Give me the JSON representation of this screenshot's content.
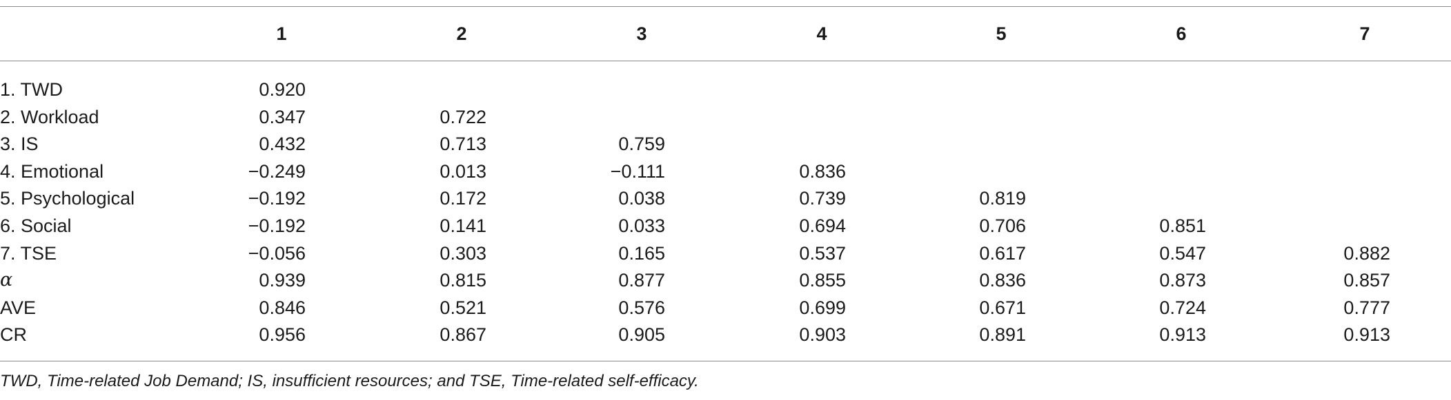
{
  "table": {
    "columns": [
      "1",
      "2",
      "3",
      "4",
      "5",
      "6",
      "7"
    ],
    "rows": [
      {
        "label": "1. TWD",
        "values": [
          "0.920",
          "",
          "",
          "",
          "",
          "",
          ""
        ]
      },
      {
        "label": "2. Workload",
        "values": [
          "0.347",
          "0.722",
          "",
          "",
          "",
          "",
          ""
        ]
      },
      {
        "label": "3. IS",
        "values": [
          "0.432",
          "0.713",
          "0.759",
          "",
          "",
          "",
          ""
        ]
      },
      {
        "label": "4. Emotional",
        "values": [
          "−0.249",
          "0.013",
          "−0.111",
          "0.836",
          "",
          "",
          ""
        ]
      },
      {
        "label": "5. Psychological",
        "values": [
          "−0.192",
          "0.172",
          "0.038",
          "0.739",
          "0.819",
          "",
          ""
        ]
      },
      {
        "label": "6. Social",
        "values": [
          "−0.192",
          "0.141",
          "0.033",
          "0.694",
          "0.706",
          "0.851",
          ""
        ]
      },
      {
        "label": "7. TSE",
        "values": [
          "−0.056",
          "0.303",
          "0.165",
          "0.537",
          "0.617",
          "0.547",
          "0.882"
        ]
      },
      {
        "label": "α",
        "values": [
          "0.939",
          "0.815",
          "0.877",
          "0.855",
          "0.836",
          "0.873",
          "0.857"
        ]
      },
      {
        "label": "AVE",
        "values": [
          "0.846",
          "0.521",
          "0.576",
          "0.699",
          "0.671",
          "0.724",
          "0.777"
        ]
      },
      {
        "label": "CR",
        "values": [
          "0.956",
          "0.867",
          "0.905",
          "0.903",
          "0.891",
          "0.913",
          "0.913"
        ]
      }
    ]
  },
  "footnote": "TWD, Time-related Job Demand; IS, insufficient resources; and TSE, Time-related self-efficacy."
}
